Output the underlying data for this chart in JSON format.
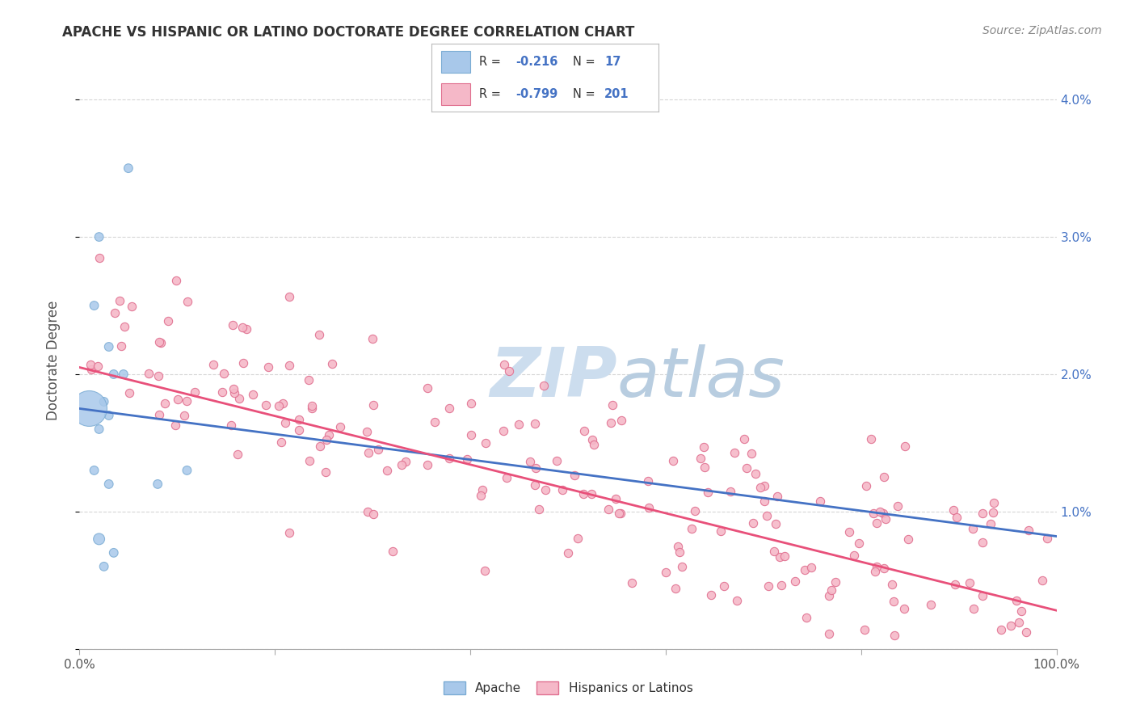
{
  "title": "APACHE VS HISPANIC OR LATINO DOCTORATE DEGREE CORRELATION CHART",
  "source": "Source: ZipAtlas.com",
  "ylabel": "Doctorate Degree",
  "ylim": [
    0.0,
    0.042
  ],
  "xlim": [
    0,
    100
  ],
  "apache_color": "#A8C8EA",
  "apache_edge_color": "#7BACD4",
  "hispanic_color": "#F5B8C8",
  "hispanic_edge_color": "#E07090",
  "apache_line_color": "#4472C4",
  "hispanic_line_color": "#E8507A",
  "tick_color": "#4472C4",
  "title_color": "#333333",
  "source_color": "#888888",
  "grid_color": "#CCCCCC",
  "watermark_color": "#CCDDEE",
  "background_color": "#FFFFFF",
  "apache_N": 17,
  "hispanic_N": 201,
  "apache_R": -0.216,
  "hispanic_R": -0.799,
  "apache_line_y0": 0.0175,
  "apache_line_y1": 0.0082,
  "hispanic_line_y0": 0.0205,
  "hispanic_line_y1": 0.0028
}
